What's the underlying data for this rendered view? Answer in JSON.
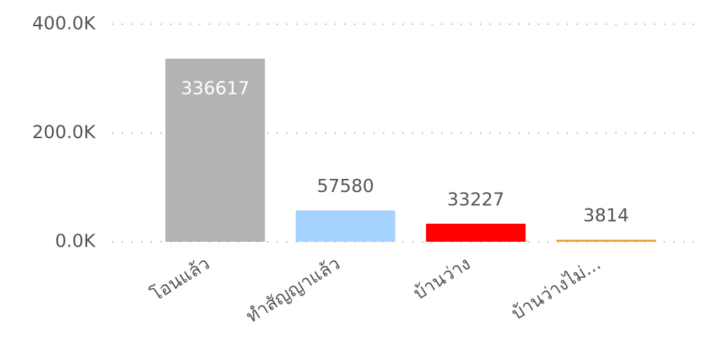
{
  "chart_data": {
    "type": "bar",
    "categories": [
      "โอนแล้ว",
      "ทําสัญญาแล้ว",
      "บ้านว่าง",
      "บ้านว่างไม่..."
    ],
    "values": [
      336617,
      57580,
      33227,
      3814
    ],
    "colors": [
      "#b3b3b3",
      "#a6d2ff",
      "#ff0000",
      "#f0a23c"
    ],
    "ylim": [
      0,
      400000
    ],
    "yticks": [
      {
        "value": 0,
        "label": "0.0K"
      },
      {
        "value": 200000,
        "label": "200.0K"
      },
      {
        "value": 400000,
        "label": "400.0K"
      }
    ],
    "grid": true
  }
}
